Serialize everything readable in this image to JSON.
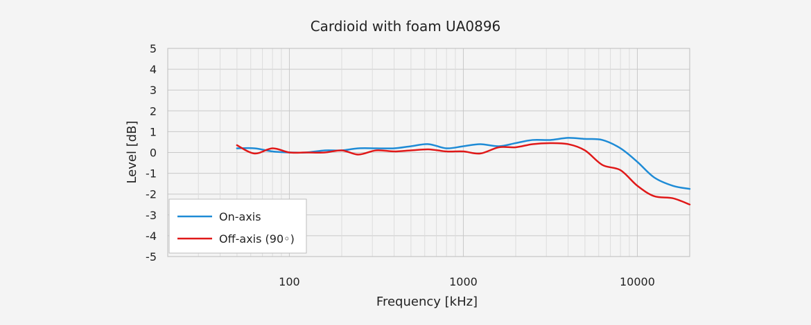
{
  "chart_data": {
    "type": "line",
    "title": "Cardioid with foam UA0896",
    "xlabel": "Frequency [kHz]",
    "ylabel": "Level [dB]",
    "x_scale": "log",
    "xlim": [
      20,
      20000
    ],
    "ylim": [
      -5,
      5
    ],
    "xticks": [
      100,
      1000,
      10000
    ],
    "xtick_labels": [
      "100",
      "1000",
      "10000"
    ],
    "yticks": [
      -5,
      -4,
      -3,
      -2,
      -1,
      0,
      1,
      2,
      3,
      4,
      5
    ],
    "ytick_labels": [
      "-5",
      "-4",
      "-3",
      "-2",
      "-1",
      "0",
      "1",
      "2",
      "3",
      "4",
      "5"
    ],
    "grid": true,
    "legend_position": "bottom-left",
    "series": [
      {
        "name": "On-axis",
        "color": "#1e8bd6",
        "x": [
          50,
          63,
          80,
          100,
          125,
          160,
          200,
          250,
          315,
          400,
          500,
          630,
          800,
          1000,
          1250,
          1600,
          2000,
          2500,
          3150,
          4000,
          5000,
          6300,
          8000,
          10000,
          12500,
          16000,
          20000
        ],
        "y": [
          0.2,
          0.2,
          0.05,
          0.0,
          0.0,
          0.1,
          0.1,
          0.2,
          0.2,
          0.2,
          0.3,
          0.4,
          0.2,
          0.3,
          0.4,
          0.3,
          0.45,
          0.6,
          0.6,
          0.7,
          0.65,
          0.6,
          0.2,
          -0.45,
          -1.2,
          -1.6,
          -1.75
        ]
      },
      {
        "name": "Off-axis (90◦)",
        "color": "#e01818",
        "x": [
          50,
          63,
          80,
          100,
          125,
          160,
          200,
          250,
          315,
          400,
          500,
          630,
          800,
          1000,
          1250,
          1600,
          2000,
          2500,
          3150,
          4000,
          5000,
          6300,
          8000,
          10000,
          12500,
          16000,
          20000
        ],
        "y": [
          0.35,
          -0.05,
          0.2,
          0.0,
          0.0,
          0.0,
          0.1,
          -0.1,
          0.1,
          0.05,
          0.1,
          0.15,
          0.05,
          0.05,
          -0.05,
          0.25,
          0.25,
          0.4,
          0.45,
          0.4,
          0.1,
          -0.6,
          -0.85,
          -1.6,
          -2.1,
          -2.2,
          -2.5
        ]
      }
    ]
  }
}
